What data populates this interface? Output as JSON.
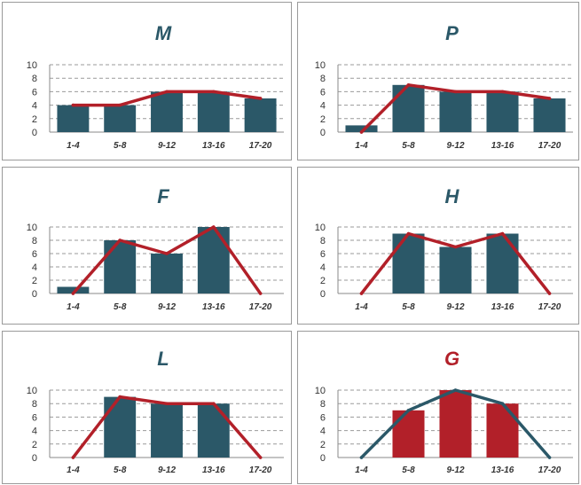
{
  "colors": {
    "teal": "#2b5868",
    "red": "#b22029",
    "grid": "#9a9a9a",
    "axis": "#8a8a8a"
  },
  "chart_data": [
    {
      "type": "bar",
      "title": "M",
      "title_color": "#2b5868",
      "categories": [
        "1-4",
        "5-8",
        "9-12",
        "13-16",
        "17-20"
      ],
      "ylim": [
        0,
        10
      ],
      "yticks": [
        0,
        2,
        4,
        6,
        8,
        10
      ],
      "grid": true,
      "series": [
        {
          "type": "bar",
          "color": "#2b5868",
          "values": [
            4,
            4,
            6,
            6,
            5
          ]
        },
        {
          "type": "line",
          "color": "#b22029",
          "values": [
            4,
            4,
            6,
            6,
            5
          ]
        }
      ]
    },
    {
      "type": "bar",
      "title": "P",
      "title_color": "#2b5868",
      "categories": [
        "1-4",
        "5-8",
        "9-12",
        "13-16",
        "17-20"
      ],
      "ylim": [
        0,
        10
      ],
      "yticks": [
        0,
        2,
        4,
        6,
        8,
        10
      ],
      "grid": true,
      "series": [
        {
          "type": "bar",
          "color": "#2b5868",
          "values": [
            1,
            7,
            6,
            6,
            5
          ]
        },
        {
          "type": "line",
          "color": "#b22029",
          "values": [
            0,
            7,
            6,
            6,
            5
          ]
        }
      ]
    },
    {
      "type": "bar",
      "title": "F",
      "title_color": "#2b5868",
      "categories": [
        "1-4",
        "5-8",
        "9-12",
        "13-16",
        "17-20"
      ],
      "ylim": [
        0,
        10
      ],
      "yticks": [
        0,
        2,
        4,
        6,
        8,
        10
      ],
      "grid": true,
      "series": [
        {
          "type": "bar",
          "color": "#2b5868",
          "values": [
            1,
            8,
            6,
            10,
            0
          ]
        },
        {
          "type": "line",
          "color": "#b22029",
          "values": [
            0,
            8,
            6,
            10,
            0
          ]
        }
      ]
    },
    {
      "type": "bar",
      "title": "H",
      "title_color": "#2b5868",
      "categories": [
        "1-4",
        "5-8",
        "9-12",
        "13-16",
        "17-20"
      ],
      "ylim": [
        0,
        10
      ],
      "yticks": [
        0,
        2,
        4,
        6,
        8,
        10
      ],
      "grid": true,
      "series": [
        {
          "type": "bar",
          "color": "#2b5868",
          "values": [
            0,
            9,
            7,
            9,
            0
          ]
        },
        {
          "type": "line",
          "color": "#b22029",
          "values": [
            0,
            9,
            7,
            9,
            0
          ]
        }
      ]
    },
    {
      "type": "bar",
      "title": "L",
      "title_color": "#2b5868",
      "categories": [
        "1-4",
        "5-8",
        "9-12",
        "13-16",
        "17-20"
      ],
      "ylim": [
        0,
        10
      ],
      "yticks": [
        0,
        2,
        4,
        6,
        8,
        10
      ],
      "grid": true,
      "series": [
        {
          "type": "bar",
          "color": "#2b5868",
          "values": [
            0,
            9,
            8,
            8,
            0
          ]
        },
        {
          "type": "line",
          "color": "#b22029",
          "values": [
            0,
            9,
            8,
            8,
            0
          ]
        }
      ]
    },
    {
      "type": "bar",
      "title": "G",
      "title_color": "#b22029",
      "categories": [
        "1-4",
        "5-8",
        "9-12",
        "13-16",
        "17-20"
      ],
      "ylim": [
        0,
        10
      ],
      "yticks": [
        0,
        2,
        4,
        6,
        8,
        10
      ],
      "grid": true,
      "series": [
        {
          "type": "bar",
          "color": "#b22029",
          "values": [
            0,
            7,
            10,
            8,
            0
          ]
        },
        {
          "type": "line",
          "color": "#2b5868",
          "values": [
            0,
            7,
            10,
            8,
            0
          ]
        }
      ]
    }
  ]
}
